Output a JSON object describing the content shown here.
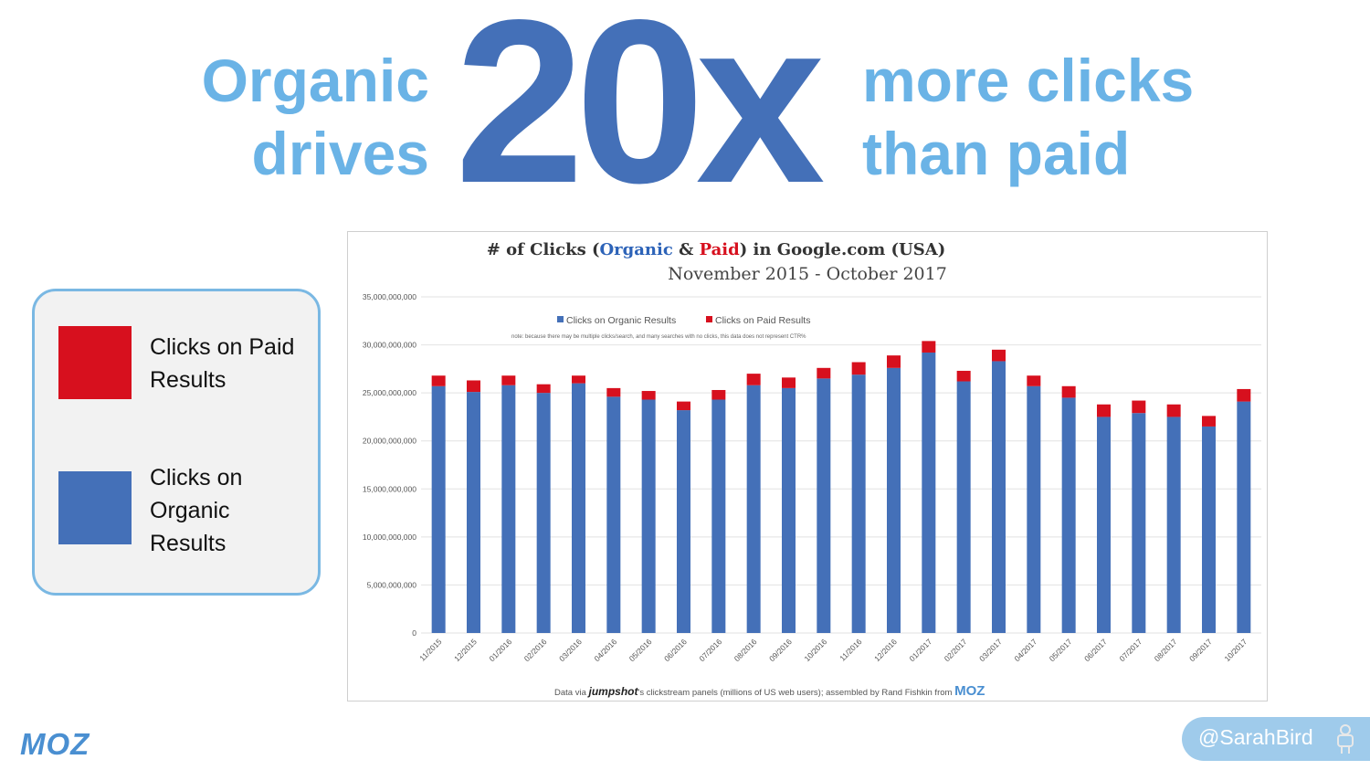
{
  "headline": {
    "left_line1": "Organic",
    "left_line2": "drives",
    "big": "20x",
    "right_line1": "more clicks",
    "right_line2": "than paid"
  },
  "legend": {
    "paid_label": "Clicks on Paid Results",
    "organic_label": "Clicks on Organic Results",
    "paid_color": "#d7101e",
    "organic_color": "#4470b8"
  },
  "chart_data": {
    "type": "bar",
    "stacked": true,
    "title_prefix": "# of Clicks (",
    "title_organic": "Organic",
    "title_amp": " & ",
    "title_paid": "Paid",
    "title_suffix": ") in Google.com (USA)",
    "subtitle": "November 2015 - October 2017",
    "legend_organic": "Clicks on Organic Results",
    "legend_paid": "Clicks on Paid Results",
    "note": "note: because there may be multiple clicks/search, and many searches with no clicks, this data does not represent CTR%",
    "footer_prefix": "Data via",
    "footer_brand": "jumpshot",
    "footer_middle": "'s clickstream panels (millions of US web users); assembled by Rand Fishkin from",
    "footer_moz": "MOZ",
    "categories": [
      "11/2015",
      "12/2015",
      "01/2016",
      "02/2016",
      "03/2016",
      "04/2016",
      "05/2016",
      "06/2016",
      "07/2016",
      "08/2016",
      "09/2016",
      "10/2016",
      "11/2016",
      "12/2016",
      "01/2017",
      "02/2017",
      "03/2017",
      "04/2017",
      "05/2017",
      "06/2017",
      "07/2017",
      "08/2017",
      "09/2017",
      "10/2017"
    ],
    "series": [
      {
        "name": "Clicks on Organic Results",
        "color": "#4470b8",
        "values": [
          25700000000,
          25100000000,
          25800000000,
          25000000000,
          26000000000,
          24600000000,
          24300000000,
          23200000000,
          24300000000,
          25800000000,
          25500000000,
          26500000000,
          26900000000,
          27600000000,
          29200000000,
          26200000000,
          28300000000,
          25700000000,
          24500000000,
          22500000000,
          22900000000,
          22500000000,
          21500000000,
          24100000000
        ]
      },
      {
        "name": "Clicks on Paid Results",
        "color": "#d7101e",
        "values": [
          1100000000,
          1200000000,
          1000000000,
          900000000,
          800000000,
          900000000,
          900000000,
          900000000,
          1000000000,
          1200000000,
          1100000000,
          1100000000,
          1300000000,
          1300000000,
          1200000000,
          1100000000,
          1200000000,
          1100000000,
          1200000000,
          1300000000,
          1300000000,
          1300000000,
          1100000000,
          1300000000
        ]
      }
    ],
    "y_ticks": [
      "0",
      "5,000,000,000",
      "10,000,000,000",
      "15,000,000,000",
      "20,000,000,000",
      "25,000,000,000",
      "30,000,000,000",
      "35,000,000,000"
    ],
    "ylim": [
      0,
      35000000000
    ],
    "grid": true,
    "legend_position": "top-center"
  },
  "branding": {
    "logo": "MOZ",
    "twitter_handle": "@SarahBird",
    "person_icon": "person-icon"
  }
}
